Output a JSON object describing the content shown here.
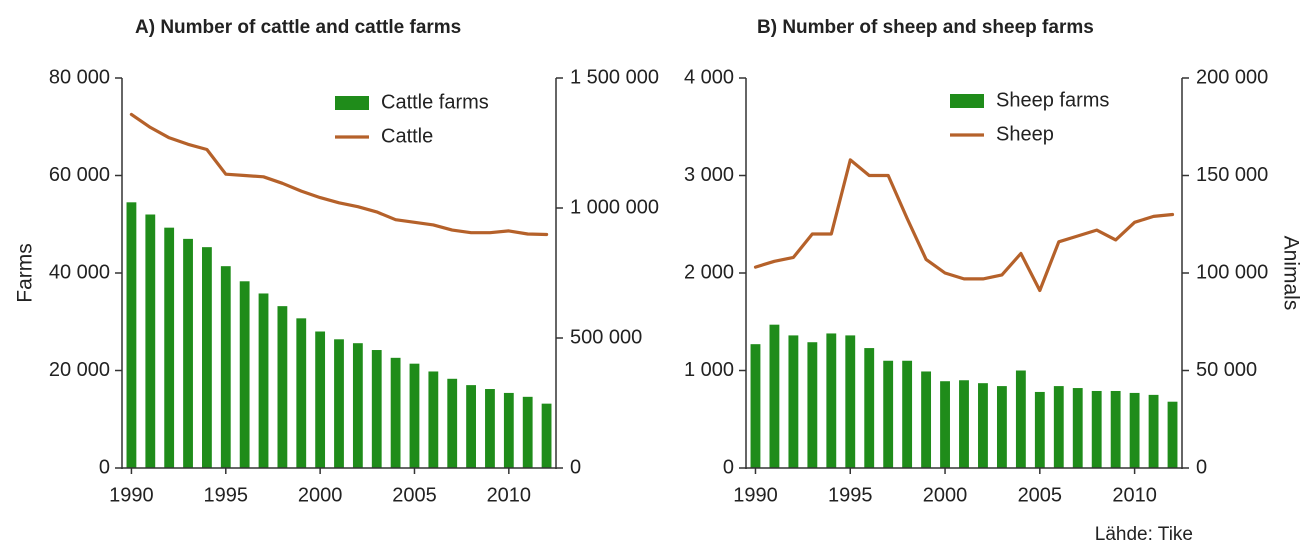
{
  "source": "Lähde: Tike",
  "chart_data": [
    {
      "type": "bar",
      "title": "A) Number of cattle and cattle farms",
      "ylabel": "Farms",
      "y2label": "",
      "x": [
        1990,
        1991,
        1992,
        1993,
        1994,
        1995,
        1996,
        1997,
        1998,
        1999,
        2000,
        2001,
        2002,
        2003,
        2004,
        2005,
        2006,
        2007,
        2008,
        2009,
        2010,
        2011,
        2012
      ],
      "xticks": [
        1990,
        1995,
        2000,
        2005,
        2010
      ],
      "xtick_labels": [
        "1990",
        "1995",
        "2000",
        "2005",
        "2010"
      ],
      "ylim": [
        0,
        80000
      ],
      "yticks": [
        0,
        20000,
        40000,
        60000,
        80000
      ],
      "ytick_labels": [
        "0",
        "20 000",
        "40 000",
        "60 000",
        "80 000"
      ],
      "y2lim": [
        0,
        1500000
      ],
      "y2ticks": [
        0,
        500000,
        1000000,
        1500000
      ],
      "y2tick_labels": [
        "0",
        "500 000",
        "1 000 000",
        "1 500 000"
      ],
      "grid": false,
      "legend_position": "top-right",
      "series": [
        {
          "name": "Cattle farms",
          "kind": "bar",
          "axis": "left",
          "color": "#1f8c1a",
          "values": [
            54500,
            52000,
            49300,
            47000,
            45300,
            41400,
            38300,
            35800,
            33200,
            30700,
            28000,
            26400,
            25600,
            24200,
            22600,
            21400,
            19800,
            18300,
            17000,
            16200,
            15400,
            14600,
            13200
          ]
        },
        {
          "name": "Cattle",
          "kind": "line",
          "axis": "right",
          "color": "#b5612a",
          "values": [
            1360000,
            1310000,
            1270000,
            1245000,
            1225000,
            1130000,
            1125000,
            1120000,
            1095000,
            1065000,
            1040000,
            1020000,
            1005000,
            985000,
            955000,
            945000,
            935000,
            915000,
            905000,
            905000,
            912000,
            900000,
            898000
          ]
        }
      ]
    },
    {
      "type": "bar",
      "title": "B) Number of sheep and sheep farms",
      "ylabel": "",
      "y2label": "Animals",
      "x": [
        1990,
        1991,
        1992,
        1993,
        1994,
        1995,
        1996,
        1997,
        1998,
        1999,
        2000,
        2001,
        2002,
        2003,
        2004,
        2005,
        2006,
        2007,
        2008,
        2009,
        2010,
        2011,
        2012
      ],
      "xticks": [
        1990,
        1995,
        2000,
        2005,
        2010
      ],
      "xtick_labels": [
        "1990",
        "1995",
        "2000",
        "2005",
        "2010"
      ],
      "ylim": [
        0,
        4000
      ],
      "yticks": [
        0,
        1000,
        2000,
        3000,
        4000
      ],
      "ytick_labels": [
        "0",
        "1 000",
        "2 000",
        "3 000",
        "4 000"
      ],
      "y2lim": [
        0,
        200000
      ],
      "y2ticks": [
        0,
        50000,
        100000,
        150000,
        200000
      ],
      "y2tick_labels": [
        "0",
        "50 000",
        "100 000",
        "150 000",
        "200 000"
      ],
      "grid": false,
      "legend_position": "top-right",
      "series": [
        {
          "name": "Sheep farms",
          "kind": "bar",
          "axis": "left",
          "color": "#1f8c1a",
          "values": [
            1270,
            1470,
            1360,
            1290,
            1380,
            1360,
            1230,
            1100,
            1100,
            990,
            890,
            900,
            870,
            840,
            1000,
            780,
            840,
            820,
            790,
            790,
            770,
            750,
            680
          ]
        },
        {
          "name": "Sheep",
          "kind": "line",
          "axis": "right",
          "color": "#b5612a",
          "values": [
            103000,
            106000,
            108000,
            120000,
            120000,
            158000,
            150000,
            150000,
            128000,
            107000,
            100000,
            97000,
            97000,
            99000,
            110000,
            91000,
            116000,
            119000,
            122000,
            117000,
            126000,
            129000,
            130000
          ]
        }
      ]
    }
  ]
}
